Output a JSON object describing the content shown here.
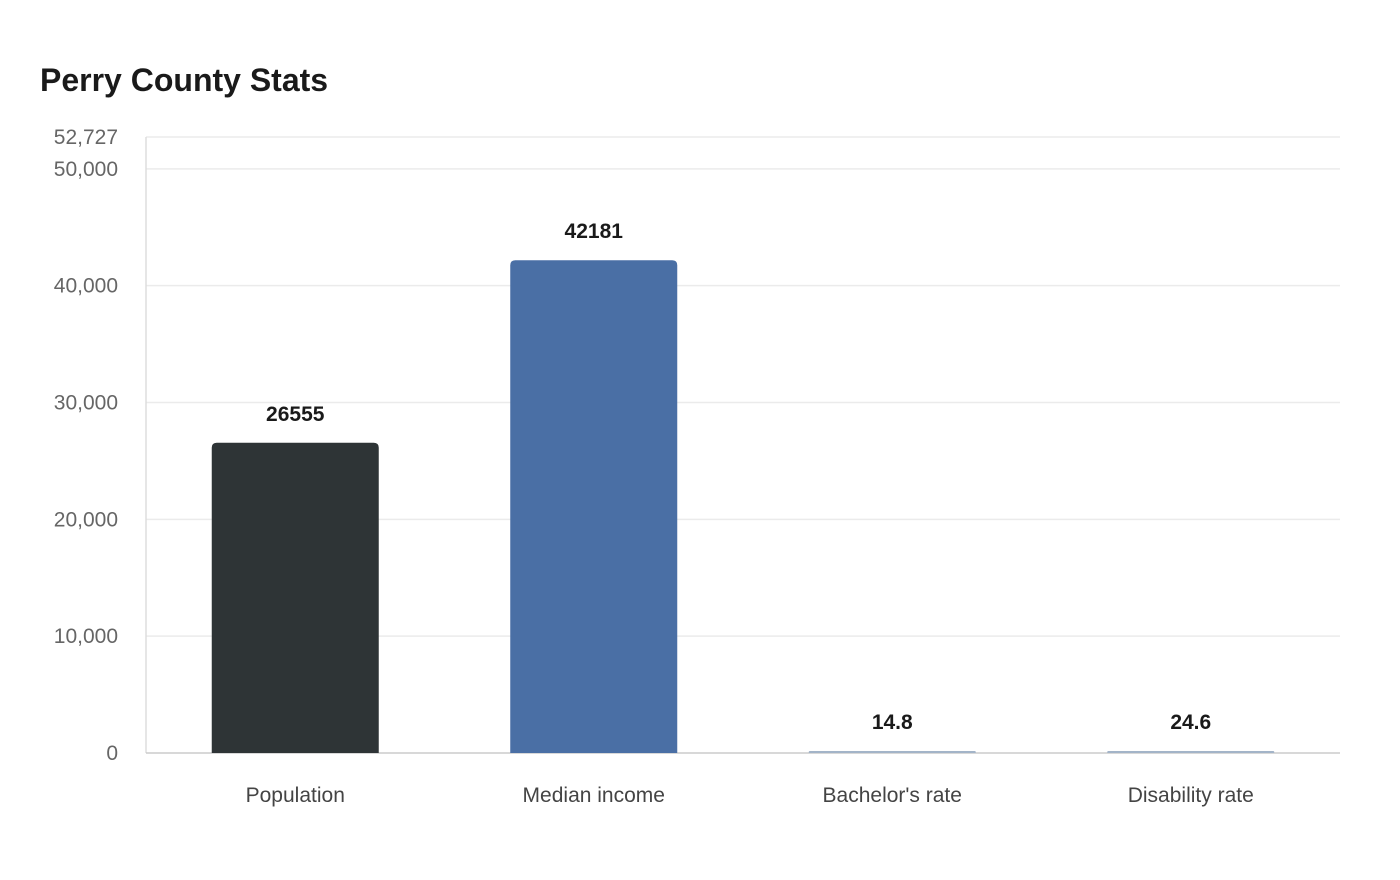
{
  "chart_data": {
    "type": "bar",
    "title": "Perry County Stats",
    "categories": [
      "Population",
      "Median income",
      "Bachelor's rate",
      "Disability rate"
    ],
    "values": [
      26555,
      42181,
      14.8,
      24.6
    ],
    "data_labels": [
      "26555",
      "42181",
      "14.8",
      "24.6"
    ],
    "bar_colors": [
      "#2e3436",
      "#4a6fa5",
      "#a3b4c8",
      "#a3b4c8"
    ],
    "ylim": [
      0,
      52727
    ],
    "y_ticks": [
      0,
      10000,
      20000,
      30000,
      40000,
      50000,
      52727
    ],
    "y_tick_labels": [
      "0",
      "10,000",
      "20,000",
      "30,000",
      "40,000",
      "50,000",
      "52,727"
    ],
    "xlabel": "",
    "ylabel": "",
    "grid": true,
    "legend": "none"
  }
}
